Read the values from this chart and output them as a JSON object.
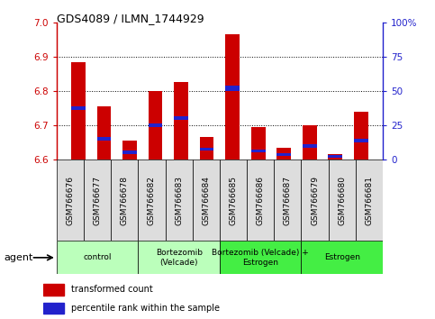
{
  "title": "GDS4089 / ILMN_1744929",
  "samples": [
    "GSM766676",
    "GSM766677",
    "GSM766678",
    "GSM766682",
    "GSM766683",
    "GSM766684",
    "GSM766685",
    "GSM766686",
    "GSM766687",
    "GSM766679",
    "GSM766680",
    "GSM766681"
  ],
  "red_values": [
    6.885,
    6.755,
    6.655,
    6.8,
    6.825,
    6.665,
    6.965,
    6.695,
    6.635,
    6.7,
    6.615,
    6.74
  ],
  "blue_bottoms": [
    6.745,
    6.655,
    6.615,
    6.695,
    6.715,
    6.625,
    6.8,
    6.62,
    6.61,
    6.635,
    6.605,
    6.65
  ],
  "blue_heights": [
    0.01,
    0.01,
    0.01,
    0.01,
    0.01,
    0.01,
    0.015,
    0.01,
    0.008,
    0.01,
    0.008,
    0.01
  ],
  "ymin": 6.6,
  "ymax": 7.0,
  "yticks_left": [
    6.6,
    6.7,
    6.8,
    6.9,
    7.0
  ],
  "yticks_right_pos": [
    6.6,
    6.7,
    6.8,
    6.9,
    7.0
  ],
  "yticks_right_labels": [
    "0",
    "25",
    "50",
    "75",
    "100%"
  ],
  "groups": [
    {
      "label": "control",
      "start": 0,
      "end": 3,
      "color": "#bbffbb"
    },
    {
      "label": "Bortezomib\n(Velcade)",
      "start": 3,
      "end": 6,
      "color": "#bbffbb"
    },
    {
      "label": "Bortezomib (Velcade) +\nEstrogen",
      "start": 6,
      "end": 9,
      "color": "#44ee44"
    },
    {
      "label": "Estrogen",
      "start": 9,
      "end": 12,
      "color": "#44ee44"
    }
  ],
  "bar_width": 0.55,
  "red_color": "#cc0000",
  "blue_color": "#2222cc",
  "bar_base": 6.6,
  "legend_items": [
    "transformed count",
    "percentile rank within the sample"
  ],
  "agent_label": "agent"
}
